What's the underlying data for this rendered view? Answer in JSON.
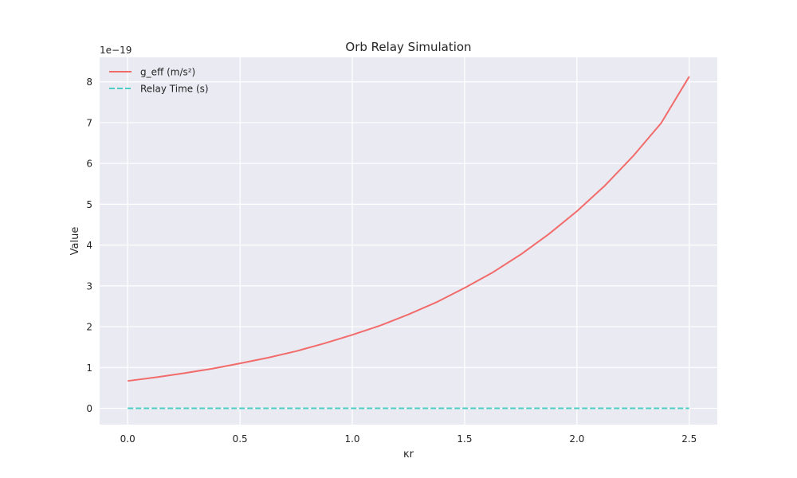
{
  "chart_data": {
    "type": "line",
    "title": "Orb Relay Simulation",
    "xlabel": "κr",
    "ylabel": "Value",
    "y_offset_label": "1e−19",
    "xlim": [
      -0.125,
      2.625
    ],
    "ylim": [
      -0.4,
      8.6
    ],
    "xticks": [
      0.0,
      0.5,
      1.0,
      1.5,
      2.0,
      2.5
    ],
    "xtick_labels": [
      "0.0",
      "0.5",
      "1.0",
      "1.5",
      "2.0",
      "2.5"
    ],
    "yticks": [
      0,
      1,
      2,
      3,
      4,
      5,
      6,
      7,
      8
    ],
    "ytick_labels": [
      "0",
      "1",
      "2",
      "3",
      "4",
      "5",
      "6",
      "7",
      "8"
    ],
    "grid": true,
    "legend_position": "top-left",
    "series": [
      {
        "name": "g_eff (m/s²)",
        "style": "solid",
        "color": "#f26b6b",
        "x": [
          0.0,
          0.125,
          0.25,
          0.375,
          0.5,
          0.625,
          0.75,
          0.875,
          1.0,
          1.125,
          1.25,
          1.375,
          1.5,
          1.625,
          1.75,
          1.875,
          2.0,
          2.125,
          2.25,
          2.375,
          2.5
        ],
        "y": [
          0.67,
          0.76,
          0.86,
          0.97,
          1.1,
          1.24,
          1.4,
          1.59,
          1.8,
          2.03,
          2.3,
          2.6,
          2.95,
          3.33,
          3.77,
          4.27,
          4.83,
          5.46,
          6.18,
          6.99,
          8.13
        ]
      },
      {
        "name": "Relay Time (s)",
        "style": "dashed",
        "color": "#4ecdc4",
        "x": [
          0.0,
          2.5
        ],
        "y": [
          0.0,
          0.0
        ]
      }
    ]
  },
  "colors": {
    "plot_background": "#eaeaf2",
    "grid": "#ffffff",
    "text": "#262626"
  }
}
